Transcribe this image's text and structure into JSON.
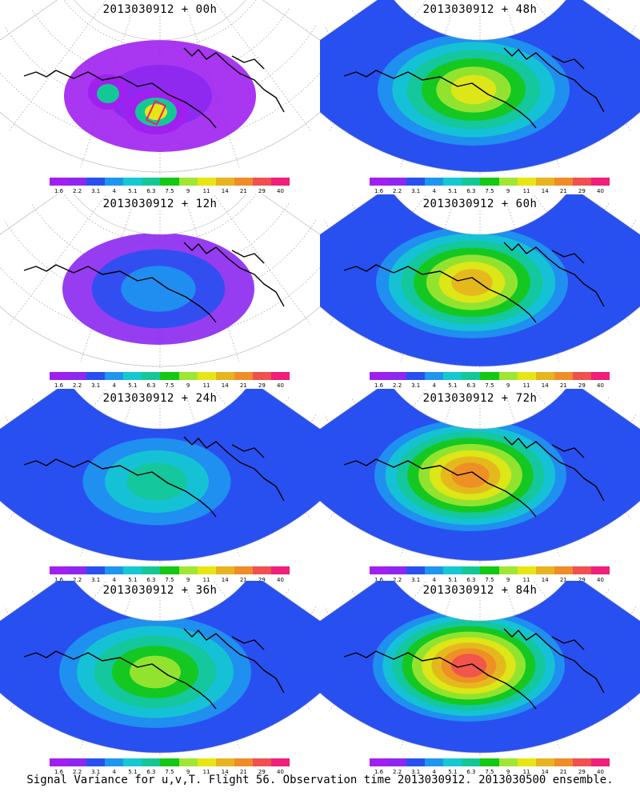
{
  "footer": "Signal Variance for u,v,T. Flight 56. Observation time 2013030912. 2013030500 ensemble.",
  "colorbar": {
    "labels": [
      "1.6",
      "2.2",
      "3.1",
      "4",
      "5.1",
      "6.3",
      "7.5",
      "9",
      "11",
      "14",
      "21",
      "29",
      "40"
    ],
    "colors": [
      "#a020f0",
      "#8c28f0",
      "#2850f0",
      "#1e96f0",
      "#14c8d2",
      "#14c896",
      "#14c814",
      "#a0e632",
      "#e6e614",
      "#e6b41e",
      "#f08c28",
      "#f05050",
      "#f01e78"
    ]
  },
  "panels": [
    {
      "id": "p00",
      "title": "2013030912 + 00h",
      "level": 0
    },
    {
      "id": "p48",
      "title": "2013030912 + 48h",
      "level": 4
    },
    {
      "id": "p12",
      "title": "2013030912 + 12h",
      "level": 1
    },
    {
      "id": "p60",
      "title": "2013030912 + 60h",
      "level": 5
    },
    {
      "id": "p24",
      "title": "2013030912 + 24h",
      "level": 2
    },
    {
      "id": "p72",
      "title": "2013030912 + 72h",
      "level": 6
    },
    {
      "id": "p36",
      "title": "2013030912 + 36h",
      "level": 3
    },
    {
      "id": "p84",
      "title": "2013030912 + 84h",
      "level": 7
    }
  ]
}
